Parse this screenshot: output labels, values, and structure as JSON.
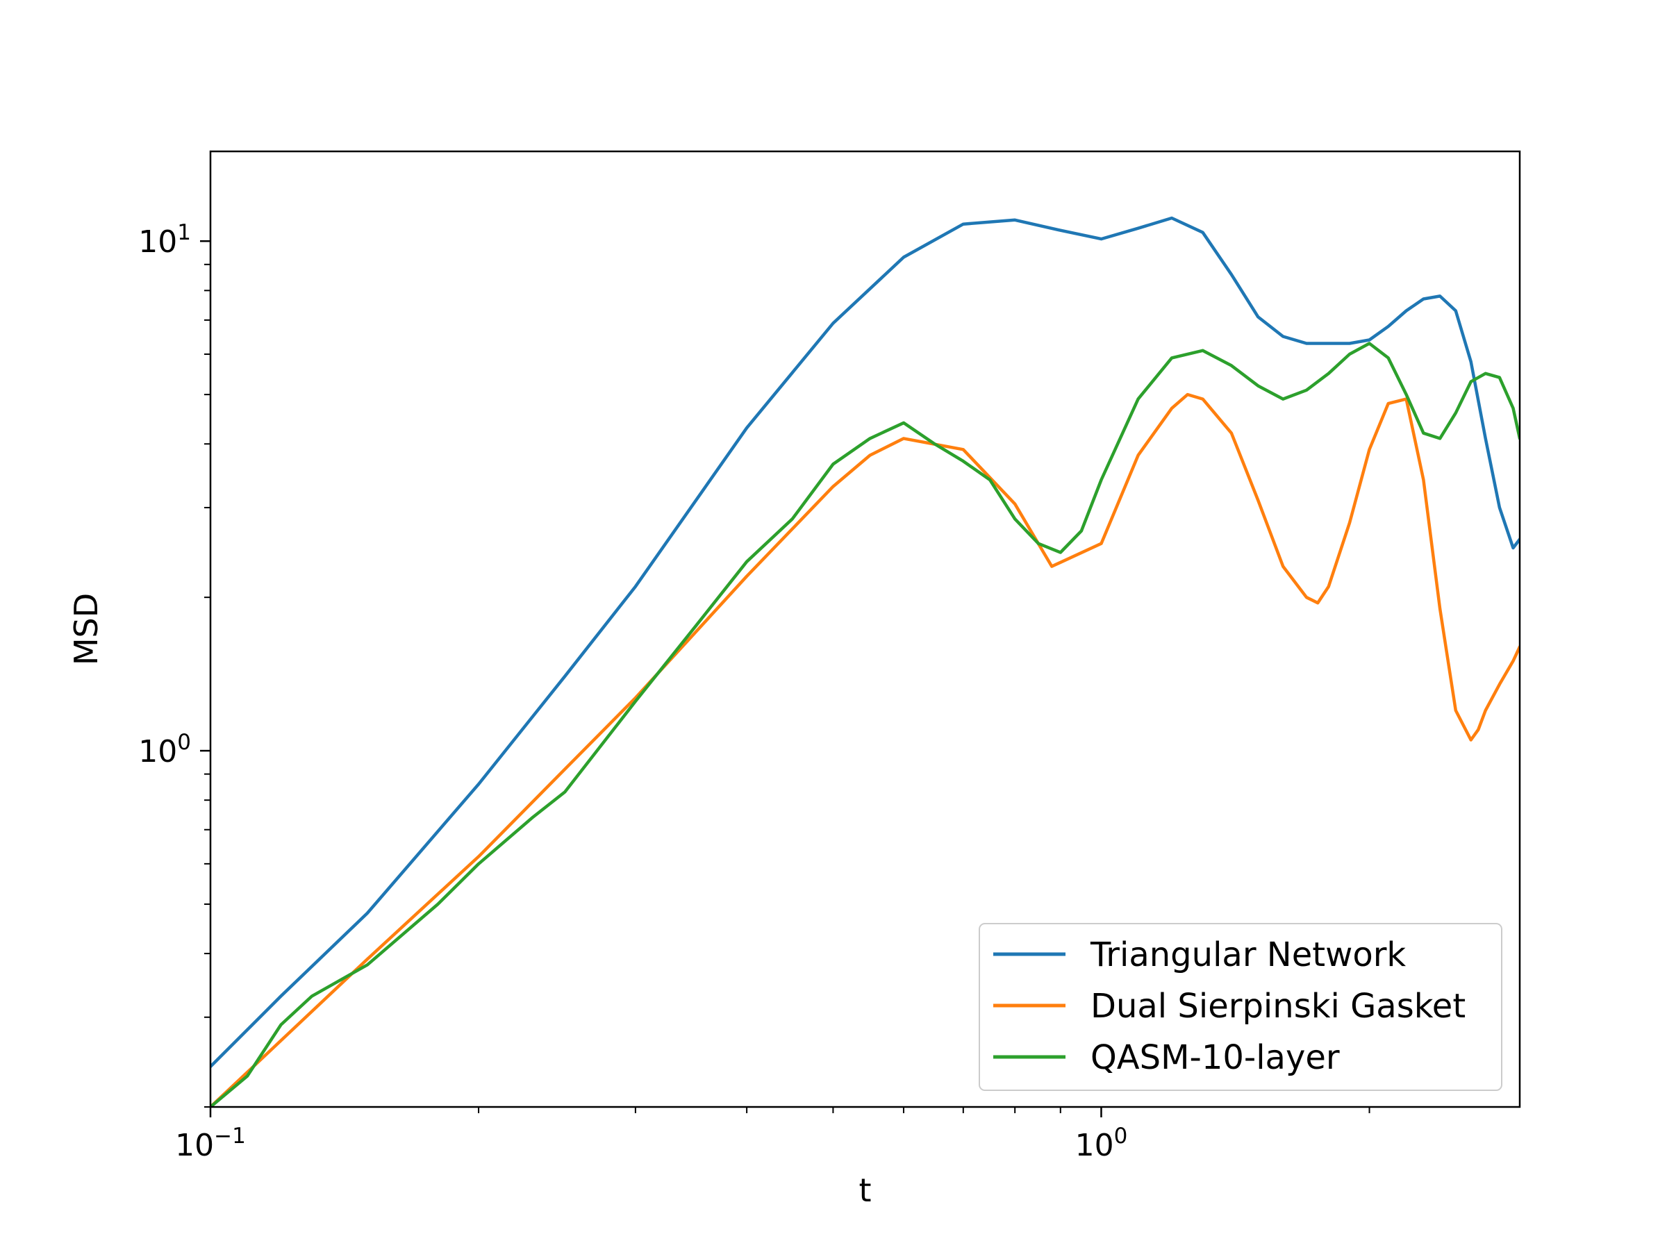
{
  "chart_data": {
    "type": "line",
    "title": "",
    "xlabel": "t",
    "ylabel": "MSD",
    "xscale": "log",
    "yscale": "log",
    "xlim": [
      0.1,
      2.95
    ],
    "ylim": [
      0.2,
      15.0
    ],
    "xticks": [
      {
        "value": 0.1,
        "base": "10",
        "exp": "−1"
      },
      {
        "value": 1.0,
        "base": "10",
        "exp": "0"
      }
    ],
    "yticks": [
      {
        "value": 1.0,
        "base": "10",
        "exp": "0"
      },
      {
        "value": 10.0,
        "base": "10",
        "exp": "1"
      }
    ],
    "grid": false,
    "legend_position": "lower-right",
    "series": [
      {
        "name": "Triangular Network",
        "color": "#1f77b4",
        "x": [
          0.1,
          0.12,
          0.15,
          0.2,
          0.25,
          0.3,
          0.4,
          0.5,
          0.6,
          0.7,
          0.8,
          0.9,
          1.0,
          1.1,
          1.2,
          1.3,
          1.4,
          1.5,
          1.6,
          1.7,
          1.8,
          1.9,
          2.0,
          2.1,
          2.2,
          2.3,
          2.4,
          2.5,
          2.6,
          2.7,
          2.8,
          2.9,
          2.95
        ],
        "y": [
          0.24,
          0.33,
          0.48,
          0.86,
          1.4,
          2.1,
          4.3,
          6.9,
          9.3,
          10.8,
          11.0,
          10.5,
          10.1,
          10.6,
          11.1,
          10.4,
          8.6,
          7.1,
          6.5,
          6.3,
          6.3,
          6.3,
          6.4,
          6.8,
          7.3,
          7.7,
          7.8,
          7.3,
          5.8,
          4.1,
          3.0,
          2.5,
          2.6
        ]
      },
      {
        "name": "Dual Sierpinski Gasket",
        "color": "#ff7f0e",
        "x": [
          0.1,
          0.12,
          0.15,
          0.2,
          0.25,
          0.3,
          0.4,
          0.5,
          0.55,
          0.6,
          0.7,
          0.8,
          0.88,
          1.0,
          1.1,
          1.2,
          1.25,
          1.3,
          1.4,
          1.5,
          1.6,
          1.7,
          1.75,
          1.8,
          1.9,
          2.0,
          2.1,
          2.2,
          2.3,
          2.4,
          2.5,
          2.6,
          2.65,
          2.7,
          2.8,
          2.9,
          2.95
        ],
        "y": [
          0.2,
          0.27,
          0.39,
          0.62,
          0.92,
          1.27,
          2.2,
          3.3,
          3.8,
          4.1,
          3.9,
          3.05,
          2.3,
          2.55,
          3.8,
          4.7,
          5.0,
          4.9,
          4.2,
          3.1,
          2.3,
          2.0,
          1.95,
          2.1,
          2.8,
          3.9,
          4.8,
          4.9,
          3.4,
          1.9,
          1.2,
          1.05,
          1.1,
          1.2,
          1.35,
          1.5,
          1.6
        ]
      },
      {
        "name": "QASM-10-layer",
        "color": "#2ca02c",
        "x": [
          0.1,
          0.11,
          0.12,
          0.13,
          0.15,
          0.18,
          0.2,
          0.23,
          0.25,
          0.3,
          0.35,
          0.4,
          0.45,
          0.5,
          0.55,
          0.6,
          0.65,
          0.7,
          0.75,
          0.8,
          0.85,
          0.9,
          0.95,
          1.0,
          1.1,
          1.2,
          1.3,
          1.4,
          1.5,
          1.6,
          1.7,
          1.8,
          1.9,
          2.0,
          2.1,
          2.2,
          2.3,
          2.4,
          2.5,
          2.6,
          2.7,
          2.8,
          2.9,
          2.95
        ],
        "y": [
          0.2,
          0.23,
          0.29,
          0.33,
          0.38,
          0.5,
          0.6,
          0.74,
          0.83,
          1.25,
          1.75,
          2.35,
          2.85,
          3.65,
          4.1,
          4.4,
          4.0,
          3.7,
          3.4,
          2.85,
          2.55,
          2.45,
          2.7,
          3.4,
          4.9,
          5.9,
          6.1,
          5.7,
          5.2,
          4.9,
          5.1,
          5.5,
          6.0,
          6.3,
          5.9,
          5.0,
          4.2,
          4.1,
          4.6,
          5.3,
          5.5,
          5.4,
          4.7,
          4.1
        ]
      }
    ]
  }
}
